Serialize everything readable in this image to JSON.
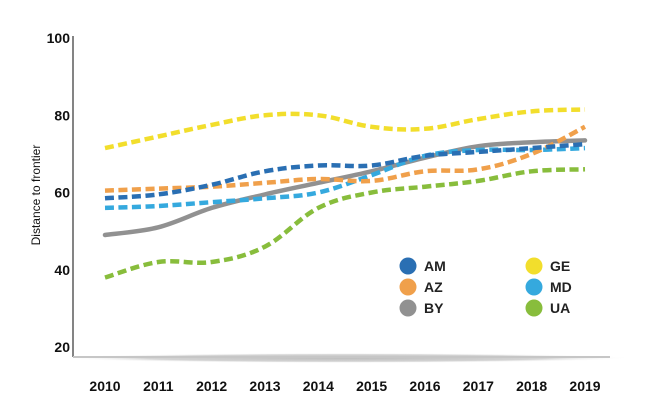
{
  "chart_data": {
    "type": "line",
    "title": "",
    "xlabel": "",
    "ylabel": "Distance to frontier",
    "x": [
      "2010",
      "2011",
      "2012",
      "2013",
      "2014",
      "2015",
      "2016",
      "2017",
      "2018",
      "2019"
    ],
    "ylim": [
      20,
      100
    ],
    "yticks": [
      "20",
      "40",
      "60",
      "80",
      "100"
    ],
    "grid": false,
    "legend_position": "bottom-right",
    "series": [
      {
        "name": "AM",
        "color": "#2a6fb3",
        "style": "dashed",
        "values": [
          58.5,
          59.5,
          62,
          65.5,
          67,
          67,
          69.5,
          70.5,
          71.5,
          72.5
        ]
      },
      {
        "name": "AZ",
        "color": "#f0a04b",
        "style": "dashed",
        "values": [
          60.5,
          61,
          61.5,
          62.5,
          63.5,
          63,
          65.5,
          66,
          70,
          77
        ]
      },
      {
        "name": "BY",
        "color": "#919191",
        "style": "solid",
        "values": [
          49,
          51,
          56,
          59.5,
          62.5,
          65.5,
          69,
          72,
          73,
          73.5
        ]
      },
      {
        "name": "GE",
        "color": "#f2de2c",
        "style": "dashed",
        "values": [
          71.5,
          74.5,
          77.5,
          80,
          80,
          77,
          76.5,
          79,
          81,
          81.5
        ]
      },
      {
        "name": "MD",
        "color": "#35a9de",
        "style": "dashed",
        "values": [
          56,
          56.5,
          57.5,
          58.5,
          60,
          64.5,
          69.5,
          71,
          71,
          71.5
        ]
      },
      {
        "name": "UA",
        "color": "#88bd3c",
        "style": "dashed",
        "values": [
          38,
          42,
          42,
          46,
          56,
          60,
          61.5,
          63,
          65.5,
          66
        ]
      }
    ]
  }
}
